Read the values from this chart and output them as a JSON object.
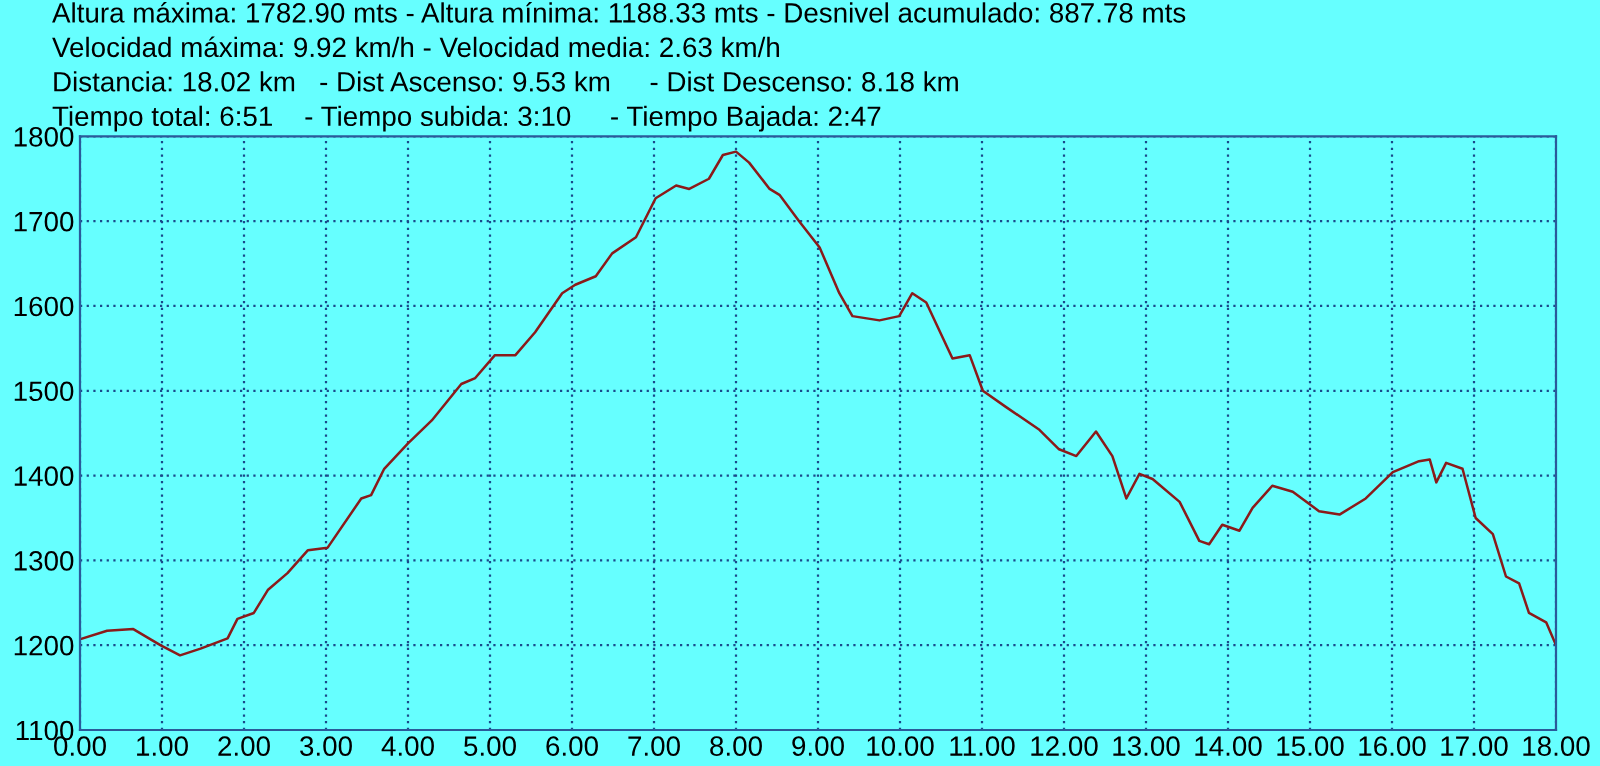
{
  "chart_data": {
    "type": "line",
    "annotations": [
      "Altura máxima: 1782.90 mts - Altura mínima: 1188.33 mts - Desnivel acumulado: 887.78 mts",
      "Velocidad máxima: 9.92 km/h - Velocidad media: 2.63 km/h",
      "Distancia: 18.02 km   - Dist Ascenso: 9.53 km     - Dist Descenso: 8.18 km",
      "Tiempo total: 6:51    - Tiempo subida: 3:10     - Tiempo Bajada: 2:47"
    ],
    "series": [
      {
        "color": "#8b1a1a",
        "x": [
          0,
          0.33,
          0.65,
          0.98,
          1.22,
          1.47,
          1.8,
          1.92,
          2.12,
          2.29,
          2.53,
          2.78,
          3.02,
          3.43,
          3.55,
          3.71,
          4.0,
          4.29,
          4.65,
          4.82,
          5.06,
          5.31,
          5.55,
          5.88,
          6.04,
          6.29,
          6.49,
          6.78,
          7.02,
          7.27,
          7.43,
          7.67,
          7.84,
          8.0,
          8.16,
          8.41,
          8.53,
          8.77,
          9.02,
          9.26,
          9.42,
          9.75,
          9.99,
          10.15,
          10.32,
          10.64,
          10.85,
          11.01,
          11.29,
          11.7,
          11.94,
          12.15,
          12.39,
          12.59,
          12.76,
          12.92,
          13.08,
          13.41,
          13.65,
          13.77,
          13.93,
          14.14,
          14.3,
          14.54,
          14.79,
          15.11,
          15.36,
          15.68,
          16.01,
          16.33,
          16.46,
          16.54,
          16.66,
          16.86,
          17.02,
          17.23,
          17.39,
          17.55,
          17.67,
          17.88,
          18.0
        ],
        "values": [
          1207,
          1217,
          1219,
          1200,
          1188,
          1196,
          1208,
          1231,
          1238,
          1265,
          1285,
          1312,
          1315,
          1373,
          1377,
          1408,
          1438,
          1465,
          1508,
          1515,
          1542,
          1542,
          1569,
          1615,
          1625,
          1635,
          1662,
          1681,
          1727,
          1742,
          1738,
          1750,
          1778,
          1782,
          1769,
          1738,
          1731,
          1700,
          1669,
          1615,
          1588,
          1583,
          1588,
          1615,
          1604,
          1538,
          1542,
          1500,
          1481,
          1454,
          1431,
          1423,
          1452,
          1423,
          1373,
          1402,
          1396,
          1369,
          1323,
          1319,
          1342,
          1335,
          1362,
          1388,
          1381,
          1358,
          1354,
          1373,
          1404,
          1417,
          1419,
          1392,
          1415,
          1408,
          1350,
          1331,
          1281,
          1273,
          1238,
          1227,
          1200
        ]
      }
    ],
    "xlim": [
      0,
      18
    ],
    "xticks": [
      {
        "value": 0,
        "label": "0.00"
      },
      {
        "value": 1,
        "label": "1.00"
      },
      {
        "value": 2,
        "label": "2.00"
      },
      {
        "value": 3,
        "label": "3.00"
      },
      {
        "value": 4,
        "label": "4.00"
      },
      {
        "value": 5,
        "label": "5.00"
      },
      {
        "value": 6,
        "label": "6.00"
      },
      {
        "value": 7,
        "label": "7.00"
      },
      {
        "value": 8,
        "label": "8.00"
      },
      {
        "value": 9,
        "label": "9.00"
      },
      {
        "value": 10,
        "label": "10.00"
      },
      {
        "value": 11,
        "label": "11.00"
      },
      {
        "value": 12,
        "label": "12.00"
      },
      {
        "value": 13,
        "label": "13.00"
      },
      {
        "value": 14,
        "label": "14.00"
      },
      {
        "value": 15,
        "label": "15.00"
      },
      {
        "value": 16,
        "label": "16.00"
      },
      {
        "value": 17,
        "label": "17.00"
      },
      {
        "value": 18,
        "label": "18.00"
      }
    ],
    "ylim": [
      1100,
      1800
    ],
    "yticks": [
      1100,
      1200,
      1300,
      1400,
      1500,
      1600,
      1700,
      1800
    ],
    "grid": true,
    "line_style": "solid"
  }
}
